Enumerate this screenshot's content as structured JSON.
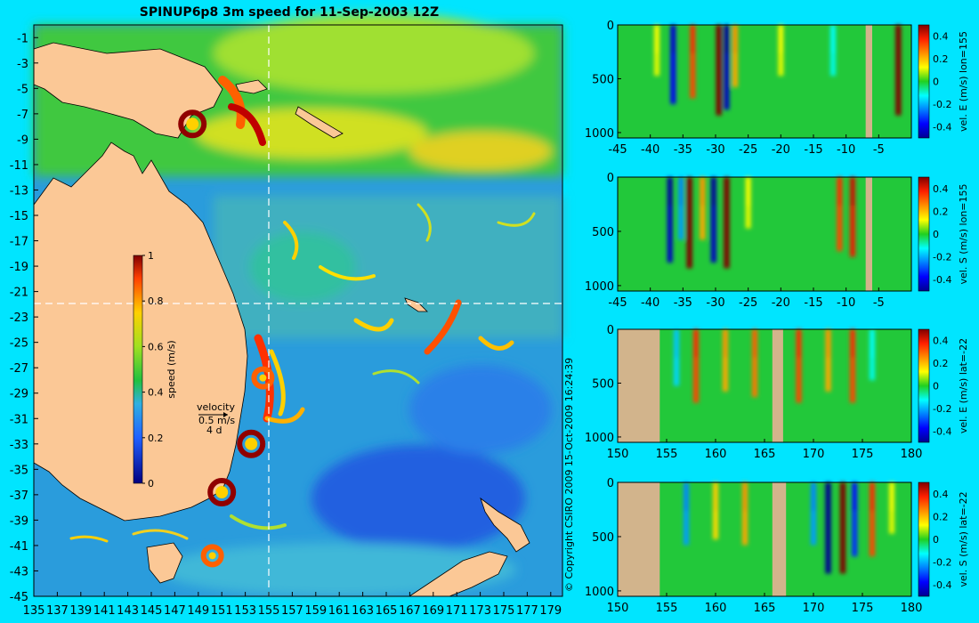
{
  "chart_data": [
    {
      "type": "heatmap",
      "title": "SPINUP6p8 3m speed for 11-Sep-2003 12Z",
      "x_ticks": [
        "135",
        "137",
        "139",
        "141",
        "143",
        "145",
        "147",
        "149",
        "151",
        "153",
        "155",
        "157",
        "159",
        "161",
        "163",
        "165",
        "167",
        "169",
        "171",
        "173",
        "175",
        "177",
        "179"
      ],
      "y_ticks": [
        "-1",
        "-3",
        "-5",
        "-7",
        "-9",
        "-11",
        "-13",
        "-15",
        "-17",
        "-19",
        "-21",
        "-23",
        "-25",
        "-27",
        "-29",
        "-31",
        "-33",
        "-35",
        "-37",
        "-39",
        "-41",
        "-43",
        "-45"
      ],
      "xlim": [
        135,
        180
      ],
      "ylim": [
        -45,
        0
      ],
      "section_lines": {
        "lon": 155,
        "lat": -22
      },
      "colorbar": {
        "label": "speed (m/s)",
        "ticks": [
          "0",
          "0.2",
          "0.4",
          "0.6",
          "0.8",
          "1"
        ],
        "range": [
          0,
          1
        ]
      },
      "velocity_legend": {
        "title": "velocity",
        "scale": "0.5 m/s",
        "time": "4 d"
      },
      "eddies": [
        {
          "lon": 153.5,
          "lat": -33.0,
          "speed": 1.0
        },
        {
          "lon": 151.0,
          "lat": -36.8,
          "speed": 1.0
        },
        {
          "lon": 150.2,
          "lat": -41.8,
          "speed": 0.7
        },
        {
          "lon": 154.5,
          "lat": -27.8,
          "speed": 0.9
        },
        {
          "lon": 148.5,
          "lat": -7.8,
          "speed": 1.0
        }
      ]
    },
    {
      "type": "heatmap",
      "ylabel": "vel. E (m/s) lon=155",
      "x_ticks": [
        "-45",
        "-40",
        "-35",
        "-30",
        "-25",
        "-20",
        "-15",
        "-10",
        "-5"
      ],
      "y_ticks": [
        "0",
        "500",
        "1000"
      ],
      "xlim": [
        -45,
        0
      ],
      "ylim": [
        1050,
        0
      ],
      "colorbar_ticks": [
        "0.4",
        "0.2",
        "0",
        "-0.2",
        "-0.4"
      ],
      "columns": [
        {
          "x": -39,
          "v": 0.1
        },
        {
          "x": -36.5,
          "v": -0.35
        },
        {
          "x": -33.5,
          "v": 0.3
        },
        {
          "x": -29.5,
          "v": 0.45
        },
        {
          "x": -28.3,
          "v": -0.4
        },
        {
          "x": -27,
          "v": 0.2
        },
        {
          "x": -20,
          "v": 0.1
        },
        {
          "x": -12,
          "v": -0.1
        },
        {
          "x": -2,
          "v": 0.45
        }
      ],
      "land": [
        [
          -7,
          -6
        ]
      ]
    },
    {
      "type": "heatmap",
      "ylabel": "vel. S (m/s) lon=155",
      "x_ticks": [
        "-45",
        "-40",
        "-35",
        "-30",
        "-25",
        "-20",
        "-15",
        "-10",
        "-5"
      ],
      "y_ticks": [
        "0",
        "500",
        "1000"
      ],
      "xlim": [
        -45,
        0
      ],
      "ylim": [
        1050,
        0
      ],
      "colorbar_ticks": [
        "0.4",
        "0.2",
        "0",
        "-0.2",
        "-0.4"
      ],
      "columns": [
        {
          "x": -37,
          "v": -0.4
        },
        {
          "x": -35.3,
          "v": -0.2
        },
        {
          "x": -34,
          "v": 0.45
        },
        {
          "x": -32,
          "v": 0.2
        },
        {
          "x": -30.3,
          "v": -0.4
        },
        {
          "x": -28.3,
          "v": 0.45
        },
        {
          "x": -25,
          "v": 0.1
        },
        {
          "x": -11,
          "v": 0.3
        },
        {
          "x": -9,
          "v": 0.35
        }
      ],
      "land": [
        [
          -7,
          -6
        ]
      ]
    },
    {
      "type": "heatmap",
      "ylabel": "vel. E (m/s) lat=-22",
      "x_ticks": [
        "150",
        "155",
        "160",
        "165",
        "170",
        "175",
        "180"
      ],
      "y_ticks": [
        "0",
        "500",
        "1000"
      ],
      "xlim": [
        150,
        180
      ],
      "ylim": [
        1050,
        0
      ],
      "colorbar_ticks": [
        "0.4",
        "0.2",
        "0",
        "-0.2",
        "-0.4"
      ],
      "columns": [
        {
          "x": 156,
          "v": -0.15
        },
        {
          "x": 158,
          "v": 0.3
        },
        {
          "x": 161,
          "v": 0.2
        },
        {
          "x": 164,
          "v": 0.25
        },
        {
          "x": 168.5,
          "v": 0.3
        },
        {
          "x": 171.5,
          "v": 0.2
        },
        {
          "x": 174,
          "v": 0.3
        },
        {
          "x": 176,
          "v": -0.1
        }
      ],
      "land": [
        [
          150,
          154.3
        ],
        [
          165.8,
          166.9
        ]
      ]
    },
    {
      "type": "heatmap",
      "ylabel": "vel. S (m/s) lat=-22",
      "x_ticks": [
        "150",
        "155",
        "160",
        "165",
        "170",
        "175",
        "180"
      ],
      "y_ticks": [
        "0",
        "500",
        "1000"
      ],
      "xlim": [
        150,
        180
      ],
      "ylim": [
        1050,
        0
      ],
      "colorbar_ticks": [
        "0.4",
        "0.2",
        "0",
        "-0.2",
        "-0.4"
      ],
      "columns": [
        {
          "x": 157,
          "v": -0.2
        },
        {
          "x": 160,
          "v": 0.15
        },
        {
          "x": 163,
          "v": 0.2
        },
        {
          "x": 170,
          "v": -0.2
        },
        {
          "x": 171.5,
          "v": -0.45
        },
        {
          "x": 173,
          "v": 0.45
        },
        {
          "x": 174.2,
          "v": -0.3
        },
        {
          "x": 176,
          "v": 0.3
        },
        {
          "x": 178,
          "v": 0.1
        }
      ],
      "land": [
        [
          150,
          154.3
        ],
        [
          165.8,
          167.2
        ]
      ]
    }
  ],
  "copyright": "© Copyright CSIRO 2009   15-Oct-2009 16:24:39"
}
